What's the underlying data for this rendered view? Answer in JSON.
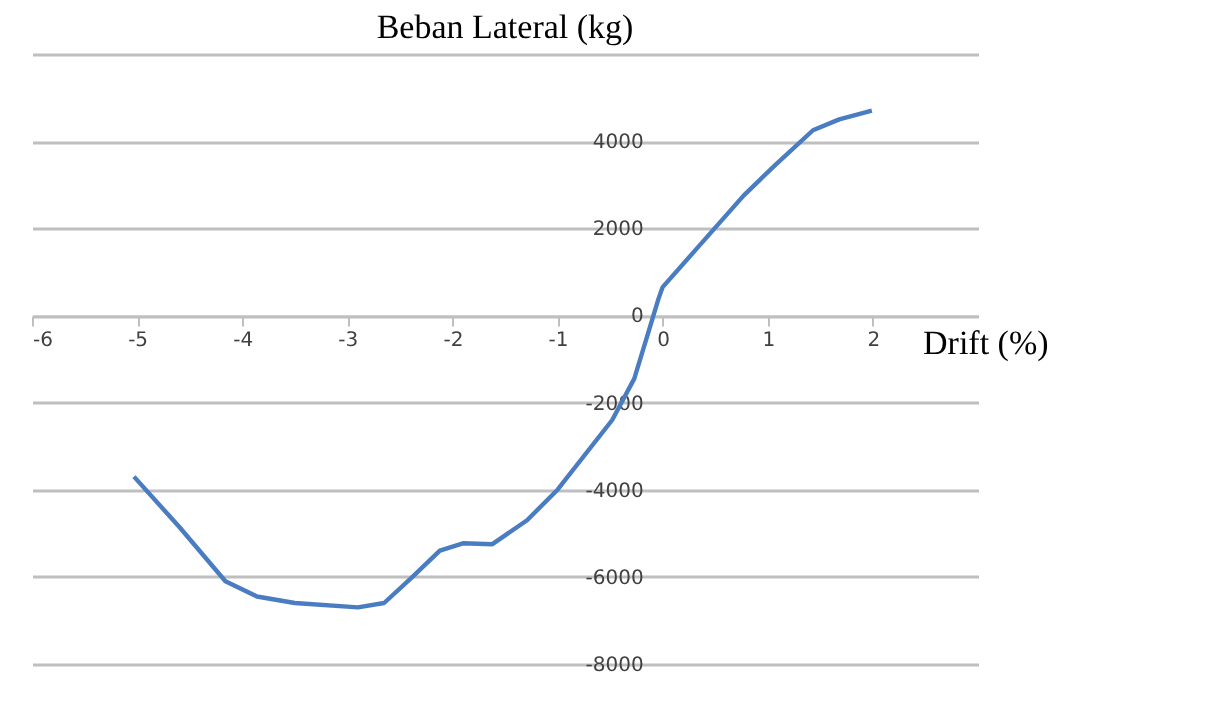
{
  "chart_data": {
    "type": "line",
    "title": "Beban Lateral (kg)",
    "xlabel": "Drift (%)",
    "x": [
      -5.03,
      -4.6,
      -4.16,
      -3.86,
      -3.5,
      -2.9,
      -2.65,
      -2.38,
      -2.12,
      -1.9,
      -1.62,
      -1.29,
      -1.0,
      -0.48,
      -0.27,
      -0.15,
      -0.04,
      0,
      0.33,
      0.77,
      1.07,
      1.43,
      1.68,
      1.99
    ],
    "series": [
      {
        "color": "#4a7cc2",
        "values": [
          -3700,
          -4850,
          -6100,
          -6450,
          -6600,
          -6700,
          -6600,
          -6000,
          -5400,
          -5230,
          -5250,
          -4700,
          -4000,
          -2400,
          -1450,
          -500,
          380,
          650,
          1550,
          2750,
          3450,
          4250,
          4500,
          4700
        ]
      }
    ],
    "xlim": [
      -6,
      3
    ],
    "xticks": [
      -6,
      -5,
      -4,
      -3,
      -2,
      -1,
      0,
      1,
      2
    ],
    "ylim": [
      -8000,
      6000
    ],
    "yticks": [
      -8000,
      -6000,
      -4000,
      -2000,
      0,
      2000,
      4000,
      {
        "value": 6000,
        "label": null
      }
    ],
    "grid": "y",
    "marker": "none",
    "line_style": "solid"
  }
}
